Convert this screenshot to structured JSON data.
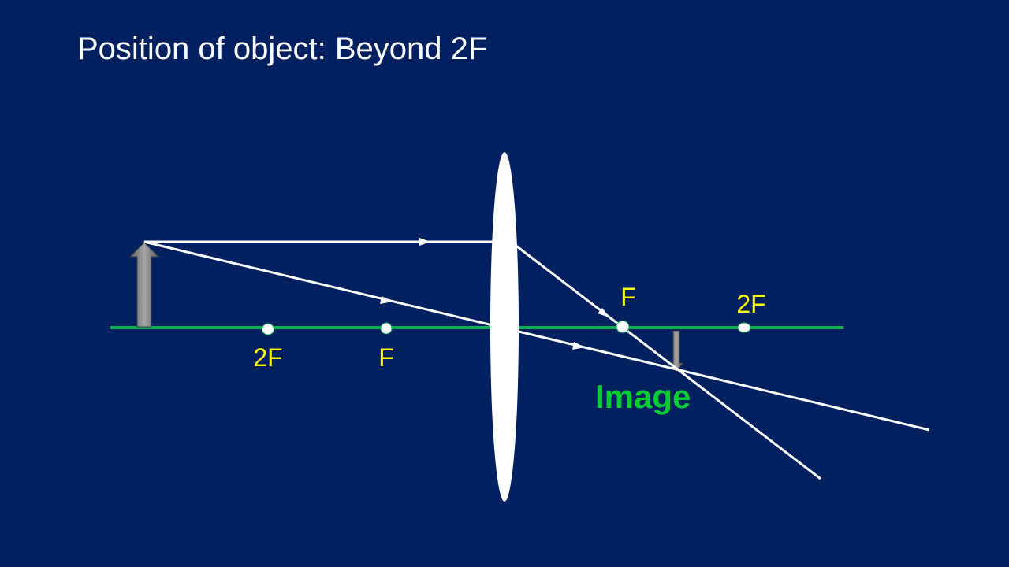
{
  "slide": {
    "title": "Position of object: Beyond 2F"
  },
  "colors": {
    "background": "#002060",
    "principal_axis": "#00b050",
    "rays": "#ffffff",
    "point_labels": "#ffff00",
    "image_label": "#00cc33",
    "arrows": "#808080"
  },
  "diagram": {
    "points": {
      "left_2f": "2F",
      "left_f": "F",
      "right_f": "F",
      "right_2f": "2F"
    },
    "image_label": "Image"
  }
}
